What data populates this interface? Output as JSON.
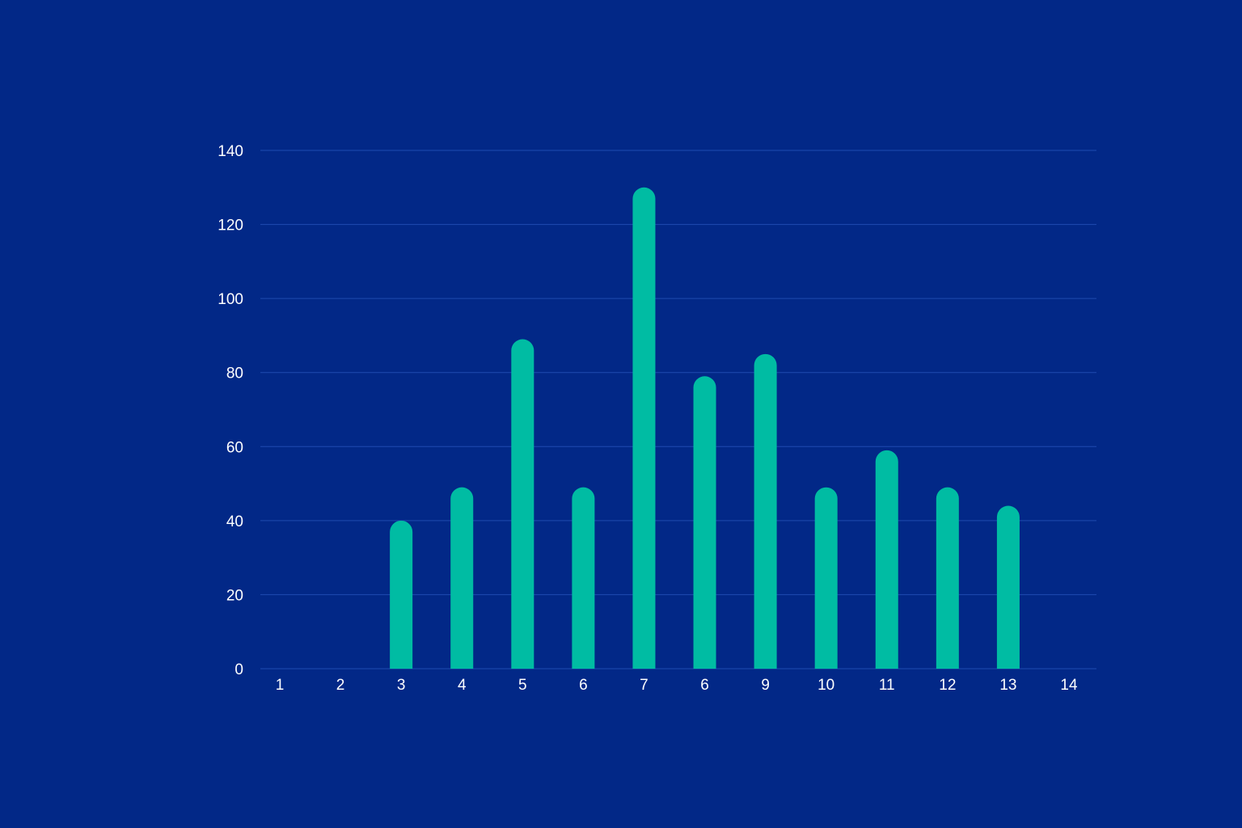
{
  "colors": {
    "background": "#022887",
    "bar": "#00bca3",
    "grid": "#1f4bb0",
    "text": "#ffffff"
  },
  "chart_data": {
    "type": "bar",
    "categories": [
      "1",
      "2",
      "3",
      "4",
      "5",
      "6",
      "7",
      "6",
      "9",
      "10",
      "11",
      "12",
      "13",
      "14"
    ],
    "values": [
      0,
      0,
      40,
      49,
      89,
      49,
      130,
      79,
      85,
      49,
      59,
      49,
      44,
      0
    ],
    "title": "",
    "xlabel": "",
    "ylabel": "",
    "ylim": [
      0,
      140
    ],
    "yticks": [
      "0",
      "20",
      "40",
      "60",
      "80",
      "100",
      "120",
      "140"
    ],
    "grid": true,
    "legend": "none"
  }
}
